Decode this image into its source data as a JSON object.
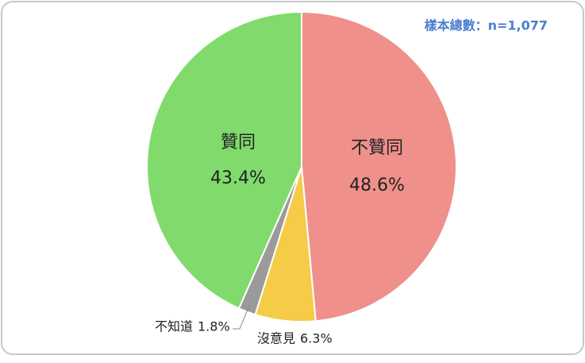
{
  "chart_data": {
    "type": "pie",
    "annotation": "樣本總數：n=1,077",
    "categories": [
      "不贊同",
      "沒意見",
      "不知道",
      "贊同"
    ],
    "values": [
      48.6,
      6.3,
      1.8,
      43.4
    ],
    "value_labels": [
      "48.6%",
      "6.3%",
      "1.8%",
      "43.4%"
    ],
    "colors": [
      "#ef908b",
      "#f6cb48",
      "#9a9a9a",
      "#80db6c"
    ]
  }
}
